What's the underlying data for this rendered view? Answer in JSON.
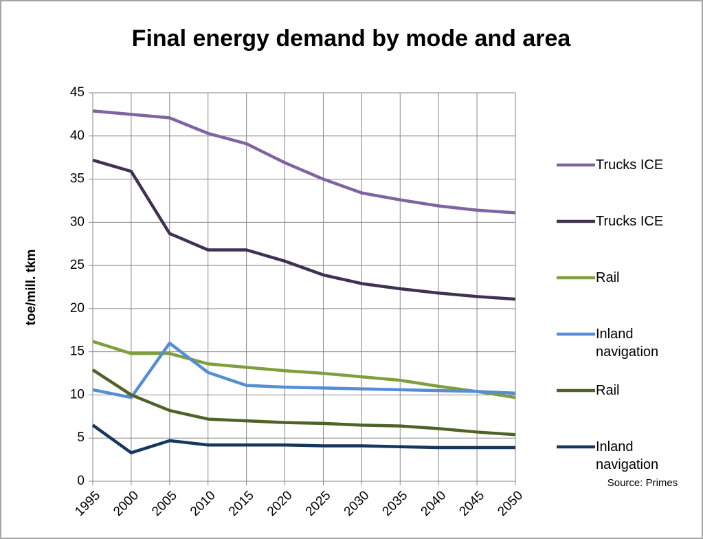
{
  "chart_data": {
    "type": "line",
    "title": "Final energy demand by mode and area",
    "y_label": "toe/mill. tkm",
    "source": "Source: Primes",
    "x": [
      1995,
      2000,
      2005,
      2010,
      2015,
      2020,
      2025,
      2030,
      2035,
      2040,
      2045,
      2050
    ],
    "xlim": [
      1995,
      2050
    ],
    "xticks": [
      1995,
      2000,
      2005,
      2010,
      2015,
      2020,
      2025,
      2030,
      2035,
      2040,
      2045,
      2050
    ],
    "ylim": [
      0,
      45
    ],
    "yticks": [
      0,
      5,
      10,
      15,
      20,
      25,
      30,
      35,
      40,
      45
    ],
    "grid": true,
    "legend": "right",
    "series": [
      {
        "name": "Trucks ICE",
        "color": "#8064a2",
        "values": [
          42.9,
          42.5,
          42.1,
          40.3,
          39.1,
          36.9,
          35.0,
          33.4,
          32.6,
          31.9,
          31.4,
          31.1
        ]
      },
      {
        "name": "Trucks ICE",
        "color": "#403152",
        "values": [
          37.2,
          35.9,
          28.7,
          26.8,
          26.8,
          25.5,
          23.9,
          22.9,
          22.3,
          21.8,
          21.4,
          21.1
        ]
      },
      {
        "name": "Rail",
        "color": "#7f9f3c",
        "values": [
          16.2,
          14.8,
          14.8,
          13.6,
          13.2,
          12.8,
          12.5,
          12.1,
          11.7,
          11.0,
          10.4,
          9.7
        ]
      },
      {
        "name": "Inland navigation",
        "color": "#558ed5",
        "values": [
          10.6,
          9.7,
          16.0,
          12.6,
          11.1,
          10.9,
          10.8,
          10.7,
          10.6,
          10.5,
          10.4,
          10.2
        ]
      },
      {
        "name": "Rail",
        "color": "#4f6228",
        "values": [
          12.9,
          10.0,
          8.2,
          7.2,
          7.0,
          6.8,
          6.7,
          6.5,
          6.4,
          6.1,
          5.7,
          5.4
        ]
      },
      {
        "name": "Inland navigation",
        "color": "#17375e",
        "values": [
          6.5,
          3.3,
          4.7,
          4.2,
          4.2,
          4.2,
          4.1,
          4.1,
          4.0,
          3.9,
          3.9,
          3.9
        ]
      }
    ]
  }
}
